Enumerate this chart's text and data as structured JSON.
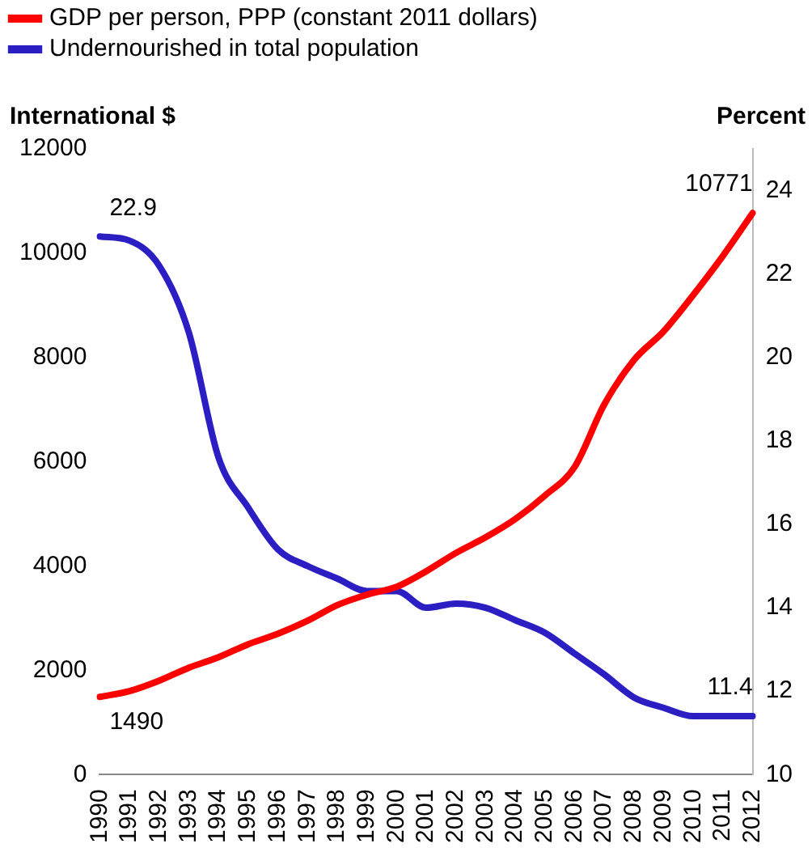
{
  "chart_data": {
    "type": "line",
    "ylabel": "International $",
    "y2label": "Percent",
    "categories": [
      "1990",
      "1991",
      "1992",
      "1993",
      "1994",
      "1995",
      "1996",
      "1997",
      "1998",
      "1999",
      "2000",
      "2001",
      "2002",
      "2003",
      "2004",
      "2005",
      "2006",
      "2007",
      "2008",
      "2009",
      "2010",
      "2011",
      "2012"
    ],
    "series": [
      {
        "name": "GDP per person, PPP (constant 2011 dollars)",
        "color": "#ff0000",
        "values": [
          1490,
          1600,
          1800,
          2050,
          2250,
          2500,
          2700,
          2950,
          3250,
          3450,
          3600,
          3900,
          4250,
          4550,
          4900,
          5350,
          5900,
          7100,
          7950,
          8500,
          9200,
          9950,
          10771
        ],
        "value_labels": [
          "1490",
          null,
          null,
          null,
          null,
          null,
          null,
          null,
          null,
          null,
          null,
          null,
          null,
          null,
          null,
          null,
          null,
          null,
          null,
          null,
          null,
          null,
          "10771"
        ]
      },
      {
        "name": "Undernourished in total population",
        "color": "#2b1fc4",
        "axis": "y2",
        "values": [
          22.9,
          22.8,
          22.2,
          20.6,
          17.6,
          16.4,
          15.4,
          15.0,
          14.7,
          14.4,
          14.4,
          14.0,
          14.1,
          14.0,
          13.7,
          13.4,
          12.9,
          12.4,
          11.85,
          11.6,
          11.4,
          11.4,
          11.4
        ],
        "value_labels": [
          "22.9",
          null,
          null,
          null,
          null,
          null,
          null,
          null,
          null,
          null,
          null,
          null,
          null,
          null,
          null,
          null,
          null,
          null,
          null,
          null,
          null,
          null,
          "11.4"
        ]
      }
    ],
    "ylim": [
      0,
      12000
    ],
    "yticks": [
      0,
      2000,
      4000,
      6000,
      8000,
      10000,
      12000
    ],
    "y2lim": [
      10,
      25
    ],
    "y2ticks": [
      10,
      12,
      14,
      16,
      18,
      20,
      22,
      24
    ],
    "grid": false,
    "legend": "top left",
    "marker": "none",
    "line_style": "solid"
  }
}
